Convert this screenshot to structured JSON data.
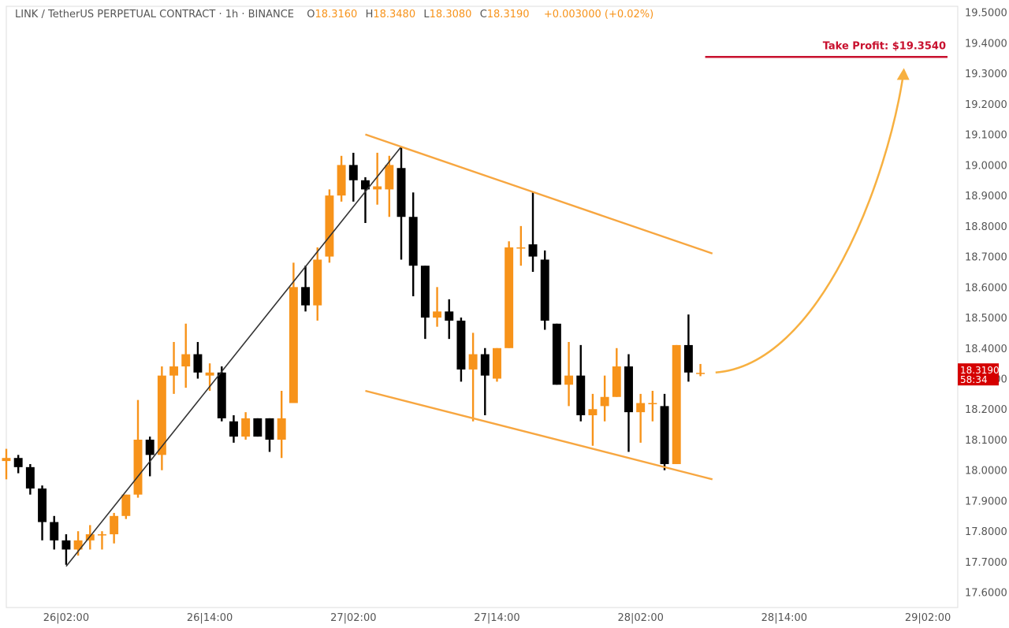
{
  "header": {
    "symbol": "LINK / TetherUS PERPETUAL CONTRACT · 1h · BINANCE",
    "o_label": "O",
    "o_value": "18.3160",
    "h_label": "H",
    "h_value": "18.3480",
    "l_label": "L",
    "l_value": "18.3080",
    "c_label": "C",
    "c_value": "18.3190",
    "change": "+0.003000 (+0.02%)"
  },
  "colors": {
    "bull": "#f7931a",
    "bear": "#000000",
    "channel": "#f7a640",
    "trendline": "#333333",
    "take_profit": "#c8102e",
    "arrow": "#f7b040",
    "price_label_bg": "#d50000",
    "axis_text": "#555555",
    "frame": "#dddddd"
  },
  "price_label": {
    "price": "18.3190",
    "countdown": "58:34"
  },
  "chart_data": {
    "type": "candlestick",
    "title": "LINK / TetherUS PERPETUAL CONTRACT · 1h · BINANCE",
    "interval_hours": 1,
    "y_axis_side": "right",
    "ylim": [
      17.55,
      19.52
    ],
    "yticks": [
      "19.5000",
      "19.4000",
      "19.3000",
      "19.2000",
      "19.1000",
      "19.0000",
      "18.9000",
      "18.8000",
      "18.7000",
      "18.6000",
      "18.5000",
      "18.4000",
      "18.3000",
      "18.2000",
      "18.1000",
      "18.0000",
      "17.9000",
      "17.8000",
      "17.7000",
      "17.6000"
    ],
    "xticks": [
      {
        "t": "2021-05-26T02:00",
        "label": "26|02:00"
      },
      {
        "t": "2021-05-26T14:00",
        "label": "26|14:00"
      },
      {
        "t": "2021-05-27T02:00",
        "label": "27|02:00"
      },
      {
        "t": "2021-05-27T14:00",
        "label": "27|14:00"
      },
      {
        "t": "2021-05-28T02:00",
        "label": "28|02:00"
      },
      {
        "t": "2021-05-28T14:00",
        "label": "28|14:00"
      },
      {
        "t": "2021-05-29T02:00",
        "label": "29|02:00"
      }
    ],
    "xlim": [
      "2021-05-25T21:00",
      "2021-05-29T04:30"
    ],
    "candles": [
      {
        "t": "2021-05-25T21:00",
        "o": 18.03,
        "h": 18.07,
        "l": 17.97,
        "c": 18.04
      },
      {
        "t": "2021-05-25T22:00",
        "o": 18.04,
        "h": 18.05,
        "l": 17.99,
        "c": 18.01
      },
      {
        "t": "2021-05-25T23:00",
        "o": 18.01,
        "h": 18.02,
        "l": 17.92,
        "c": 17.94
      },
      {
        "t": "2021-05-26T00:00",
        "o": 17.94,
        "h": 17.95,
        "l": 17.77,
        "c": 17.83
      },
      {
        "t": "2021-05-26T01:00",
        "o": 17.83,
        "h": 17.85,
        "l": 17.74,
        "c": 17.77
      },
      {
        "t": "2021-05-26T02:00",
        "o": 17.77,
        "h": 17.79,
        "l": 17.69,
        "c": 17.74
      },
      {
        "t": "2021-05-26T03:00",
        "o": 17.74,
        "h": 17.8,
        "l": 17.72,
        "c": 17.77
      },
      {
        "t": "2021-05-26T04:00",
        "o": 17.77,
        "h": 17.82,
        "l": 17.74,
        "c": 17.79
      },
      {
        "t": "2021-05-26T05:00",
        "o": 17.79,
        "h": 17.8,
        "l": 17.74,
        "c": 17.79
      },
      {
        "t": "2021-05-26T06:00",
        "o": 17.79,
        "h": 17.86,
        "l": 17.76,
        "c": 17.85
      },
      {
        "t": "2021-05-26T07:00",
        "o": 17.85,
        "h": 17.92,
        "l": 17.84,
        "c": 17.92
      },
      {
        "t": "2021-05-26T08:00",
        "o": 17.92,
        "h": 18.23,
        "l": 17.91,
        "c": 18.1
      },
      {
        "t": "2021-05-26T09:00",
        "o": 18.1,
        "h": 18.11,
        "l": 17.98,
        "c": 18.05
      },
      {
        "t": "2021-05-26T10:00",
        "o": 18.05,
        "h": 18.34,
        "l": 18.0,
        "c": 18.31
      },
      {
        "t": "2021-05-26T11:00",
        "o": 18.31,
        "h": 18.42,
        "l": 18.25,
        "c": 18.34
      },
      {
        "t": "2021-05-26T12:00",
        "o": 18.34,
        "h": 18.48,
        "l": 18.27,
        "c": 18.38
      },
      {
        "t": "2021-05-26T13:00",
        "o": 18.38,
        "h": 18.42,
        "l": 18.3,
        "c": 18.32
      },
      {
        "t": "2021-05-26T14:00",
        "o": 18.31,
        "h": 18.35,
        "l": 18.26,
        "c": 18.32
      },
      {
        "t": "2021-05-26T15:00",
        "o": 18.32,
        "h": 18.34,
        "l": 18.16,
        "c": 18.17
      },
      {
        "t": "2021-05-26T16:00",
        "o": 18.16,
        "h": 18.18,
        "l": 18.09,
        "c": 18.11
      },
      {
        "t": "2021-05-26T17:00",
        "o": 18.11,
        "h": 18.19,
        "l": 18.1,
        "c": 18.17
      },
      {
        "t": "2021-05-26T18:00",
        "o": 18.17,
        "h": 18.17,
        "l": 18.11,
        "c": 18.11
      },
      {
        "t": "2021-05-26T19:00",
        "o": 18.17,
        "h": 18.17,
        "l": 18.06,
        "c": 18.1
      },
      {
        "t": "2021-05-26T20:00",
        "o": 18.1,
        "h": 18.26,
        "l": 18.04,
        "c": 18.17
      },
      {
        "t": "2021-05-26T21:00",
        "o": 18.22,
        "h": 18.68,
        "l": 18.22,
        "c": 18.6
      },
      {
        "t": "2021-05-26T22:00",
        "o": 18.6,
        "h": 18.67,
        "l": 18.52,
        "c": 18.54
      },
      {
        "t": "2021-05-26T23:00",
        "o": 18.54,
        "h": 18.73,
        "l": 18.49,
        "c": 18.69
      },
      {
        "t": "2021-05-27T00:00",
        "o": 18.7,
        "h": 18.92,
        "l": 18.68,
        "c": 18.9
      },
      {
        "t": "2021-05-27T01:00",
        "o": 18.9,
        "h": 19.03,
        "l": 18.88,
        "c": 19.0
      },
      {
        "t": "2021-05-27T02:00",
        "o": 19.0,
        "h": 19.04,
        "l": 18.88,
        "c": 18.95
      },
      {
        "t": "2021-05-27T03:00",
        "o": 18.95,
        "h": 18.96,
        "l": 18.81,
        "c": 18.92
      },
      {
        "t": "2021-05-27T04:00",
        "o": 18.92,
        "h": 19.04,
        "l": 18.87,
        "c": 18.93
      },
      {
        "t": "2021-05-27T05:00",
        "o": 18.92,
        "h": 19.03,
        "l": 18.83,
        "c": 19.0
      },
      {
        "t": "2021-05-27T06:00",
        "o": 18.99,
        "h": 19.06,
        "l": 18.69,
        "c": 18.83
      },
      {
        "t": "2021-05-27T07:00",
        "o": 18.83,
        "h": 18.91,
        "l": 18.57,
        "c": 18.67
      },
      {
        "t": "2021-05-27T08:00",
        "o": 18.67,
        "h": 18.67,
        "l": 18.43,
        "c": 18.5
      },
      {
        "t": "2021-05-27T09:00",
        "o": 18.5,
        "h": 18.6,
        "l": 18.47,
        "c": 18.52
      },
      {
        "t": "2021-05-27T10:00",
        "o": 18.52,
        "h": 18.56,
        "l": 18.43,
        "c": 18.49
      },
      {
        "t": "2021-05-27T11:00",
        "o": 18.49,
        "h": 18.5,
        "l": 18.29,
        "c": 18.33
      },
      {
        "t": "2021-05-27T12:00",
        "o": 18.33,
        "h": 18.45,
        "l": 18.16,
        "c": 18.38
      },
      {
        "t": "2021-05-27T13:00",
        "o": 18.38,
        "h": 18.4,
        "l": 18.18,
        "c": 18.31
      },
      {
        "t": "2021-05-27T14:00",
        "o": 18.3,
        "h": 18.4,
        "l": 18.29,
        "c": 18.4
      },
      {
        "t": "2021-05-27T15:00",
        "o": 18.4,
        "h": 18.75,
        "l": 18.4,
        "c": 18.73
      },
      {
        "t": "2021-05-27T16:00",
        "o": 18.73,
        "h": 18.8,
        "l": 18.67,
        "c": 18.73
      },
      {
        "t": "2021-05-27T17:00",
        "o": 18.74,
        "h": 18.91,
        "l": 18.65,
        "c": 18.7
      },
      {
        "t": "2021-05-27T18:00",
        "o": 18.69,
        "h": 18.72,
        "l": 18.46,
        "c": 18.49
      },
      {
        "t": "2021-05-27T19:00",
        "o": 18.48,
        "h": 18.48,
        "l": 18.28,
        "c": 18.28
      },
      {
        "t": "2021-05-27T20:00",
        "o": 18.28,
        "h": 18.42,
        "l": 18.21,
        "c": 18.31
      },
      {
        "t": "2021-05-27T21:00",
        "o": 18.31,
        "h": 18.41,
        "l": 18.16,
        "c": 18.18
      },
      {
        "t": "2021-05-27T22:00",
        "o": 18.18,
        "h": 18.25,
        "l": 18.08,
        "c": 18.2
      },
      {
        "t": "2021-05-27T23:00",
        "o": 18.21,
        "h": 18.31,
        "l": 18.16,
        "c": 18.24
      },
      {
        "t": "2021-05-28T00:00",
        "o": 18.24,
        "h": 18.4,
        "l": 18.24,
        "c": 18.34
      },
      {
        "t": "2021-05-28T01:00",
        "o": 18.34,
        "h": 18.38,
        "l": 18.06,
        "c": 18.19
      },
      {
        "t": "2021-05-28T02:00",
        "o": 18.19,
        "h": 18.25,
        "l": 18.09,
        "c": 18.22
      },
      {
        "t": "2021-05-28T03:00",
        "o": 18.22,
        "h": 18.26,
        "l": 18.16,
        "c": 18.22
      },
      {
        "t": "2021-05-28T04:00",
        "o": 18.21,
        "h": 18.25,
        "l": 18.0,
        "c": 18.02
      },
      {
        "t": "2021-05-28T05:00",
        "o": 18.02,
        "h": 18.41,
        "l": 18.02,
        "c": 18.41
      },
      {
        "t": "2021-05-28T06:00",
        "o": 18.41,
        "h": 18.51,
        "l": 18.29,
        "c": 18.32
      },
      {
        "t": "2021-05-28T07:00",
        "o": 18.316,
        "h": 18.348,
        "l": 18.308,
        "c": 18.319
      }
    ],
    "annotations": {
      "take_profit": {
        "label": "Take Profit: $19.3540",
        "price": 19.354,
        "t_start": "2021-05-28T07:00",
        "t_end": "2021-05-29T08:00"
      },
      "trendline": {
        "from": {
          "t": "2021-05-26T02:00",
          "p": 17.685
        },
        "to": {
          "t": "2021-05-27T06:00",
          "p": 19.06
        }
      },
      "channel_upper": {
        "from": {
          "t": "2021-05-27T03:00",
          "p": 19.1
        },
        "to": {
          "t": "2021-05-28T08:00",
          "p": 18.71
        }
      },
      "channel_lower": {
        "from": {
          "t": "2021-05-27T03:00",
          "p": 18.26
        },
        "to": {
          "t": "2021-05-28T08:00",
          "p": 17.97
        }
      },
      "projection_arrow": {
        "from": {
          "t": "2021-05-28T08:00",
          "p": 18.32
        },
        "to": {
          "t": "2021-05-29T00:00",
          "p": 19.31
        }
      }
    }
  }
}
